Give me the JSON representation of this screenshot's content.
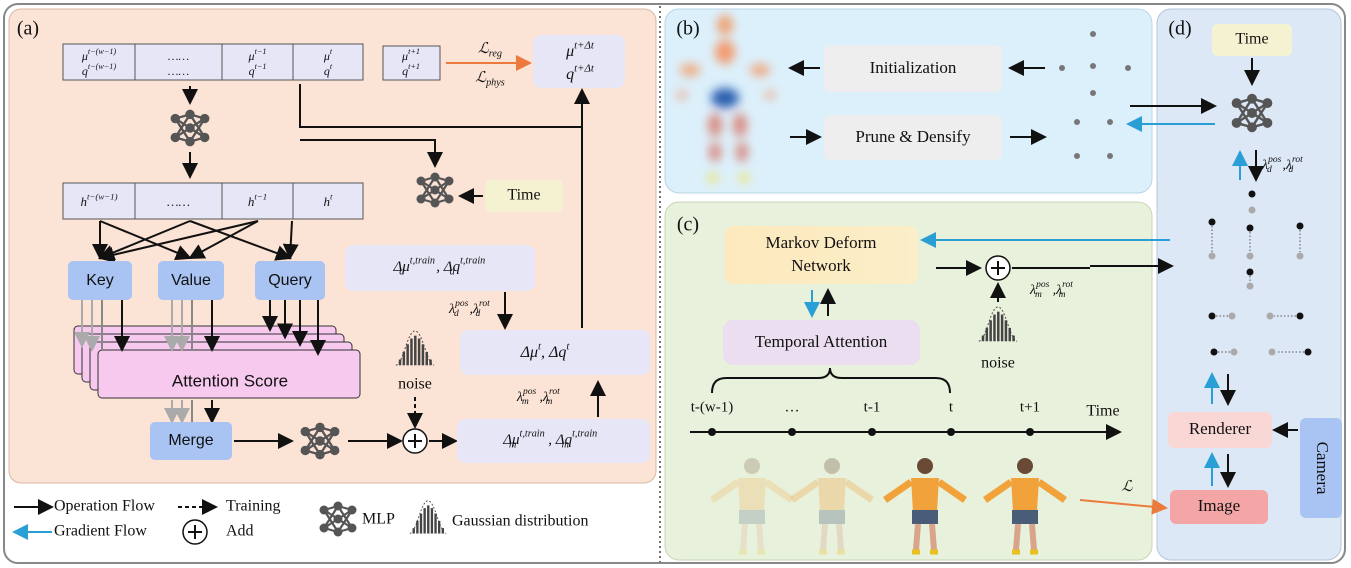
{
  "panel_a": {
    "label": "(a)",
    "input_cells": [
      [
        [
          {
            "base": "μ",
            "sup": "t−(w−1)"
          }
        ],
        [
          {
            "base": "q",
            "sup": "t−(w−1)"
          }
        ]
      ],
      [
        [
          {
            "base": "……"
          }
        ],
        [
          {
            "base": "……"
          }
        ]
      ],
      [
        [
          {
            "base": "μ",
            "sup": "t−1"
          }
        ],
        [
          {
            "base": "q",
            "sup": "t−1"
          }
        ]
      ],
      [
        [
          {
            "base": "μ",
            "sup": "t"
          }
        ],
        [
          {
            "base": "q",
            "sup": "t"
          }
        ]
      ]
    ],
    "next_cell": [
      [
        {
          "base": "μ",
          "sup": "t+1"
        }
      ],
      [
        {
          "base": "q",
          "sup": "t+1"
        }
      ]
    ],
    "loss_reg": [
      {
        "base": "ℒ",
        "sub": "reg"
      }
    ],
    "loss_phys": [
      {
        "base": "ℒ",
        "sub": "phys"
      }
    ],
    "output": [
      [
        {
          "base": "μ",
          "sup": "t+Δt"
        }
      ],
      [
        {
          "base": "q",
          "sup": "t+Δt"
        }
      ]
    ],
    "hidden_cells": [
      [
        {
          "base": "h",
          "sup": "t−(w−1)"
        }
      ],
      [
        {
          "base": "……"
        }
      ],
      [
        {
          "base": "h",
          "sup": "t−1"
        }
      ],
      [
        {
          "base": "h",
          "sup": "t"
        }
      ]
    ],
    "key": "Key",
    "value": "Value",
    "query": "Query",
    "attention": "Attention Score",
    "merge": "Merge",
    "time": "Time",
    "noise": "noise",
    "delta_d": [
      {
        "base": "Δμ",
        "sup": "t,train",
        "sub": "d"
      },
      {
        "base": ", Δq",
        "sup": "t,train",
        "sub": "d"
      }
    ],
    "lambda_d": [
      {
        "base": "λ",
        "sup": "pos",
        "sub": "d"
      },
      {
        "base": ",λ",
        "sup": "rot",
        "sub": "d"
      }
    ],
    "delta_t": [
      {
        "base": "Δμ",
        "sup": "t"
      },
      {
        "base": ", Δq",
        "sup": "t"
      }
    ],
    "lambda_m": [
      {
        "base": "λ",
        "sup": "pos",
        "sub": "m"
      },
      {
        "base": ",λ",
        "sup": "rot",
        "sub": "m"
      }
    ],
    "delta_m": [
      {
        "base": "Δμ",
        "sup": "t,train",
        "sub": "m"
      },
      {
        "base": ", Δq",
        "sup": "t,train",
        "sub": "m"
      }
    ]
  },
  "panel_b": {
    "label": "(b)",
    "initialization": "Initialization",
    "prune_densify": "Prune & Densify"
  },
  "panel_c": {
    "label": "(c)",
    "markov": [
      "Markov Deform",
      "Network"
    ],
    "temporal_attention": "Temporal Attention",
    "timeline": [
      "t-(w-1)",
      "…",
      "t-1",
      "t",
      "t+1"
    ],
    "time": "Time",
    "noise": "noise",
    "lambda_m": [
      {
        "base": "λ",
        "sup": "pos",
        "sub": "m"
      },
      {
        "base": ",λ",
        "sup": "rot",
        "sub": "m"
      }
    ],
    "loss": [
      {
        "base": "ℒ"
      }
    ]
  },
  "panel_d": {
    "label": "(d)",
    "time": "Time",
    "lambda_d": [
      {
        "base": "λ",
        "sup": "pos",
        "sub": "d"
      },
      {
        "base": ",λ",
        "sup": "rot",
        "sub": "d"
      }
    ],
    "renderer": "Renderer",
    "camera": "Camera",
    "image": "Image"
  },
  "legend": {
    "operation_flow": "Operation Flow",
    "training": "Training",
    "gradient_flow": "Gradient Flow",
    "add": "Add",
    "mlp": "MLP",
    "gaussian": "Gaussian distribution"
  }
}
